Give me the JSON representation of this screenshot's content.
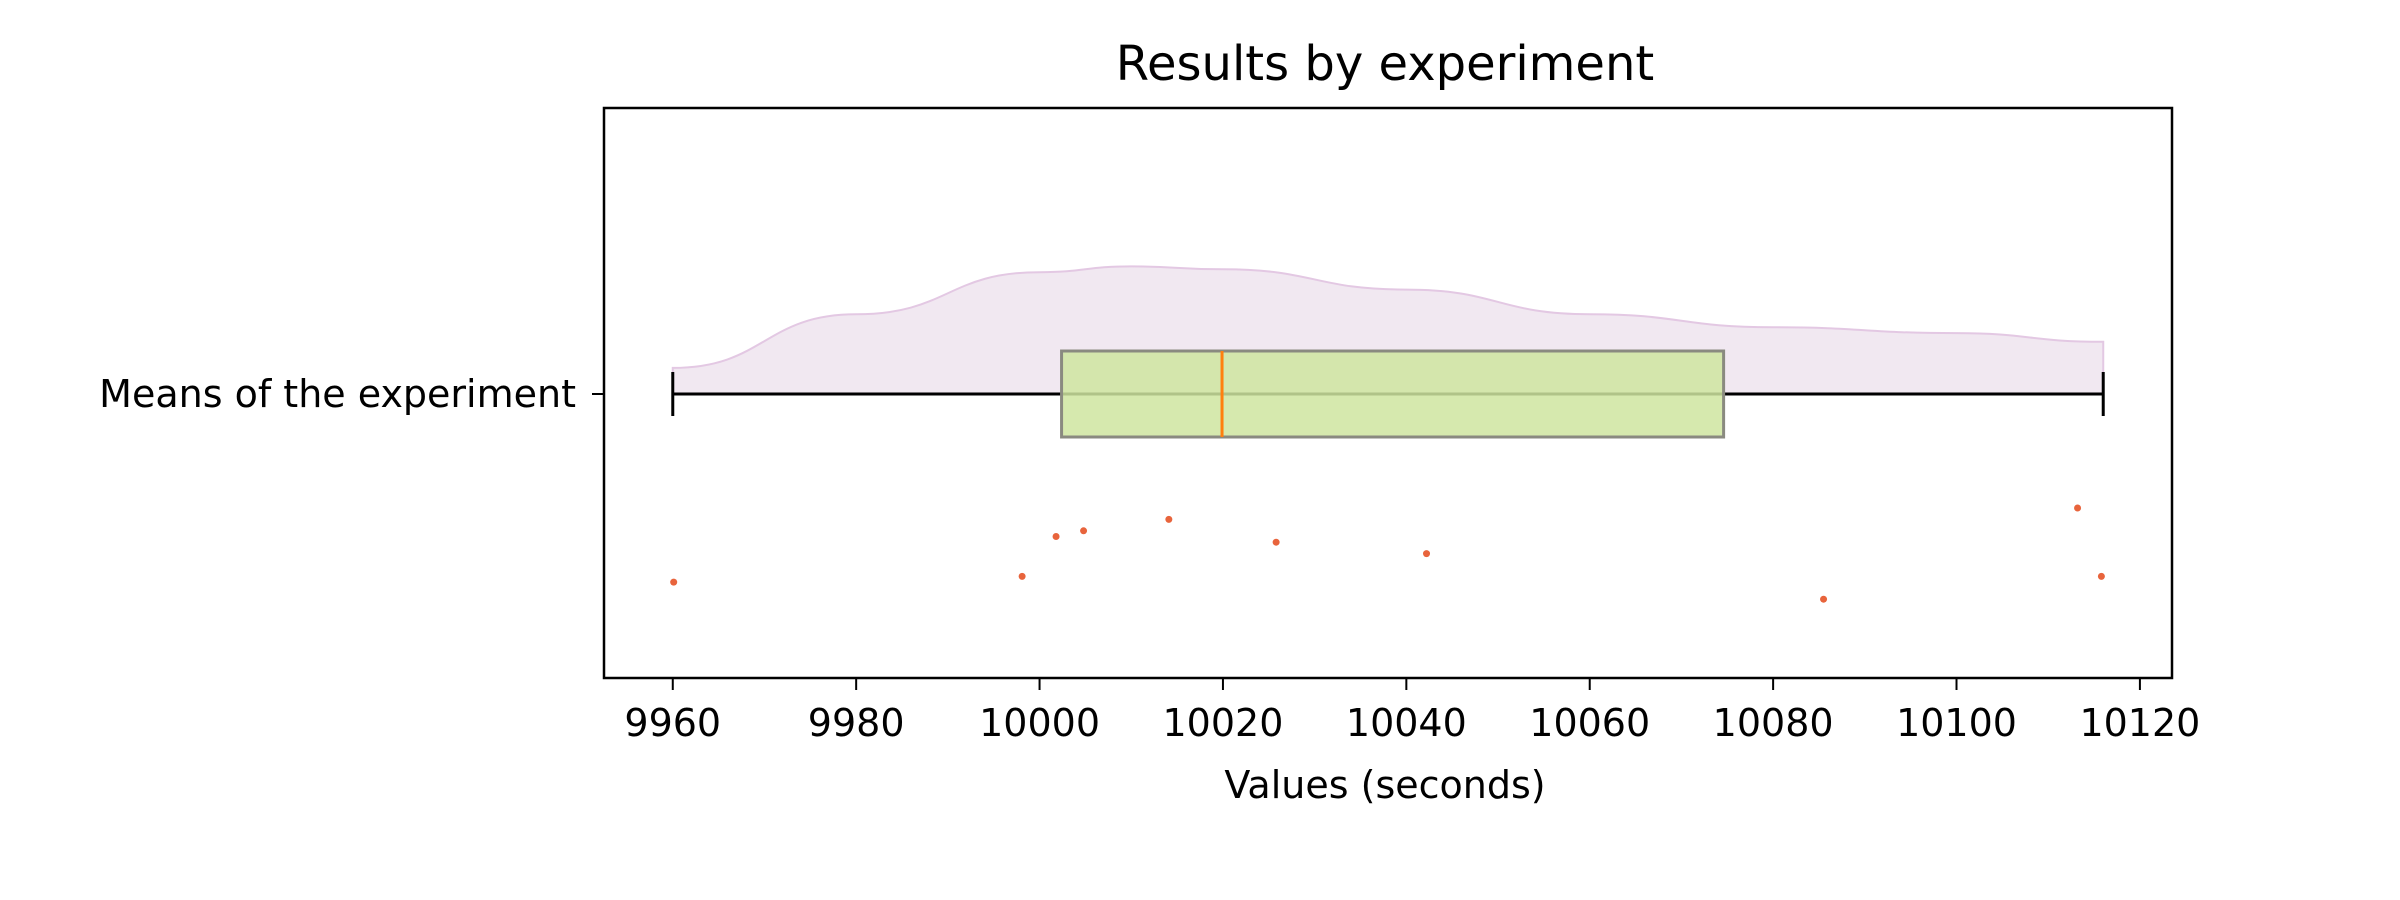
{
  "chart_data": {
    "type": "box",
    "orientation": "horizontal",
    "title": "Results by experiment",
    "xlabel": "Values (seconds)",
    "ylabel": "",
    "xlim": [
      9952.5,
      10123.5
    ],
    "x_ticks": [
      9960,
      9980,
      10000,
      10020,
      10040,
      10060,
      10080,
      10100,
      10120
    ],
    "x_tick_labels": [
      "9960",
      "9980",
      "10000",
      "10020",
      "10040",
      "10060",
      "10080",
      "10100",
      "10120"
    ],
    "categories": [
      "Means of the experiment"
    ],
    "grid": false,
    "box": {
      "whisker_low": 9960,
      "q1": 10002.4,
      "median": 10019.9,
      "q3": 10074.6,
      "whisker_high": 10116,
      "box_color": "#cfe5a0",
      "median_color": "#ff7f0e"
    },
    "points": [
      {
        "x": 9960.1,
        "jitter": -0.33
      },
      {
        "x": 9998.1,
        "jitter": -0.32
      },
      {
        "x": 10001.8,
        "jitter": -0.25
      },
      {
        "x": 10004.8,
        "jitter": -0.24
      },
      {
        "x": 10014.1,
        "jitter": -0.22
      },
      {
        "x": 10025.8,
        "jitter": -0.26
      },
      {
        "x": 10042.2,
        "jitter": -0.28
      },
      {
        "x": 10085.5,
        "jitter": -0.36
      },
      {
        "x": 10113.2,
        "jitter": -0.2
      },
      {
        "x": 10115.8,
        "jitter": -0.32
      }
    ],
    "points_color": "#e8643c",
    "density": {
      "x": [
        9960,
        9980,
        10000,
        10010,
        10020,
        10040,
        10060,
        10080,
        10100,
        10116
      ],
      "y": [
        0.18,
        0.55,
        0.84,
        0.88,
        0.86,
        0.72,
        0.55,
        0.46,
        0.42,
        0.36
      ],
      "color": "#e8d8e8"
    }
  }
}
